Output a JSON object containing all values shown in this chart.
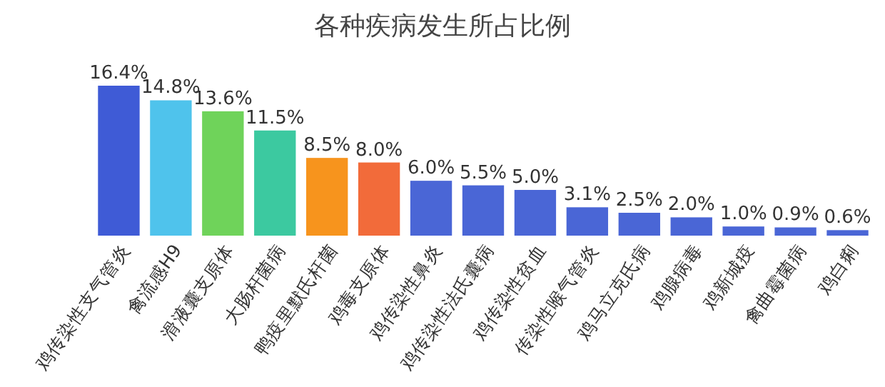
{
  "chart_data": {
    "type": "bar",
    "title": "各种疾病发生所占比例",
    "categories": [
      "鸡传染性支气管炎",
      "禽流感H9",
      "滑液囊支原体",
      "大肠杆菌病",
      "鸭疫里默氏杆菌",
      "鸡毒支原体",
      "鸡传染性鼻炎",
      "鸡传染性法氏囊病",
      "鸡传染性贫血",
      "传染性喉气管炎",
      "鸡马立克氏病",
      "鸡腺病毒",
      "鸡新城疫",
      "禽曲霉菌病",
      "鸡白痢"
    ],
    "values": [
      16.4,
      14.8,
      13.6,
      11.5,
      8.5,
      8.0,
      6.0,
      5.5,
      5.0,
      3.1,
      2.5,
      2.0,
      1.0,
      0.9,
      0.6
    ],
    "value_labels": [
      "16.4%",
      "14.8%",
      "13.6%",
      "11.5%",
      "8.5%",
      "8.0%",
      "6.0%",
      "5.5%",
      "5.0%",
      "3.1%",
      "2.5%",
      "2.0%",
      "1.0%",
      "0.9%",
      "0.6%"
    ],
    "colors": [
      "#3f5bd6",
      "#4fc3ec",
      "#6fd35a",
      "#3cc9a0",
      "#f7941d",
      "#f26b3a",
      "#4a66d6",
      "#4a66d6",
      "#4a66d6",
      "#4a66d6",
      "#4a66d6",
      "#4a66d6",
      "#4a66d6",
      "#4a66d6",
      "#4a66d6"
    ]
  }
}
